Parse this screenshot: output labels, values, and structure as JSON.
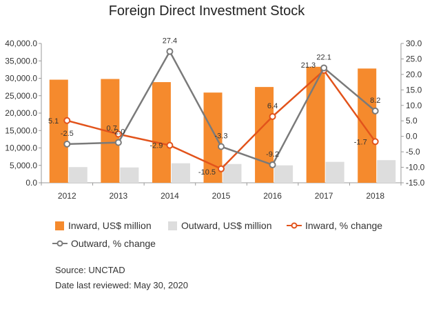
{
  "chart_data": {
    "type": "bar",
    "title": "Foreign Direct Investment Stock",
    "categories": [
      "2012",
      "2013",
      "2014",
      "2015",
      "2016",
      "2017",
      "2018"
    ],
    "ylim_left": [
      0,
      40000
    ],
    "yticks_left": [
      "0.0",
      "5,000.0",
      "10,000.0",
      "15,000.0",
      "20,000.0",
      "25,000.0",
      "30,000.0",
      "35,000.0",
      "40,000.0"
    ],
    "ylim_right": [
      -15,
      30
    ],
    "yticks_right": [
      "-15.0",
      "-10.0",
      "-5.0",
      "0.0",
      "5.0",
      "10.0",
      "15.0",
      "20.0",
      "25.0",
      "30.0"
    ],
    "grid": false,
    "legend_position": "bottom",
    "series": [
      {
        "name": "Inward, US$ million",
        "type": "bar",
        "axis": "left",
        "color": "#f58a2d",
        "values": [
          29600,
          29800,
          28900,
          25900,
          27500,
          33300,
          32800
        ]
      },
      {
        "name": "Outward, US$ million",
        "type": "bar",
        "axis": "left",
        "color": "#dddddd",
        "values": [
          4500,
          4400,
          5600,
          5400,
          5000,
          6000,
          6500
        ]
      },
      {
        "name": "Inward, % change",
        "type": "line",
        "axis": "right",
        "color": "#e2531b",
        "values": [
          5.1,
          0.7,
          -2.9,
          -10.5,
          6.4,
          21.3,
          -1.7
        ],
        "labels": [
          "5.1",
          "0.7",
          "-2.9",
          "-10.5",
          "6.4",
          "21.3",
          "-1.7"
        ]
      },
      {
        "name": "Outward, % change",
        "type": "line",
        "axis": "right",
        "color": "#7a7a7a",
        "values": [
          -2.5,
          -2.0,
          27.4,
          -3.3,
          -9.2,
          22.1,
          8.2
        ],
        "labels": [
          "-2.5",
          "-2.0",
          "27.4",
          "-3.3",
          "-9.2",
          "22.1",
          "8.2"
        ]
      }
    ]
  },
  "source": "Source: UNCTAD",
  "reviewed": "Date last reviewed: May 30, 2020"
}
